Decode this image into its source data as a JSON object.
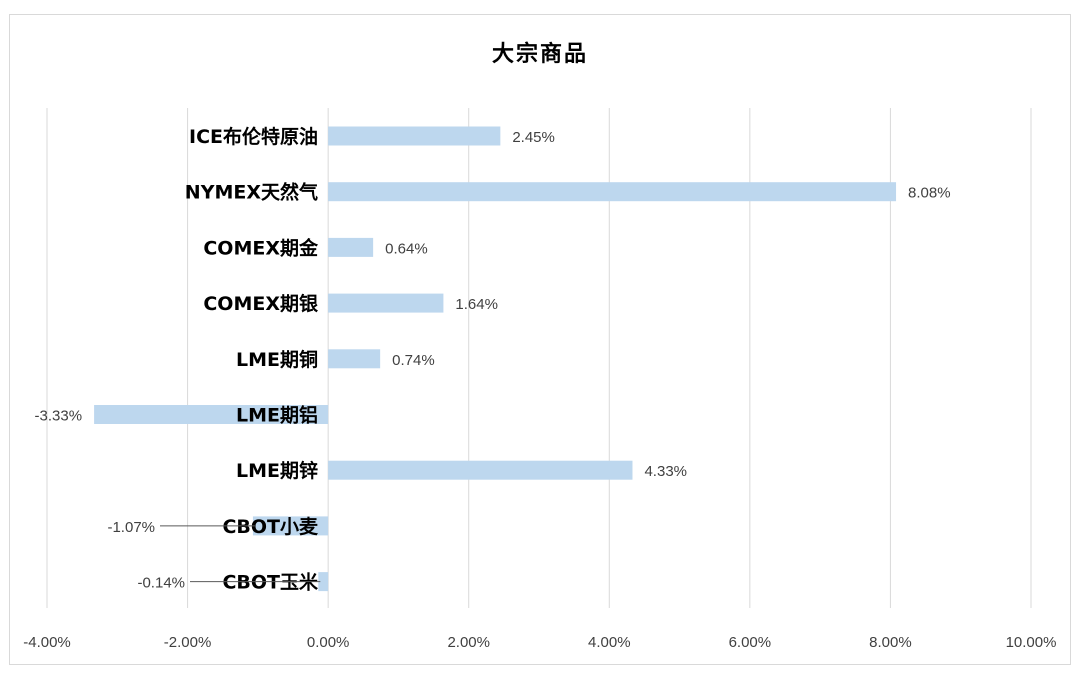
{
  "chart_data": {
    "type": "bar",
    "orientation": "horizontal",
    "title": "大宗商品",
    "categories": [
      "ICE布伦特原油",
      "NYMEX天然气",
      "COMEX期金",
      "COMEX期银",
      "LME期铜",
      "LME期铝",
      "LME期锌",
      "CBOT小麦",
      "CBOT玉米"
    ],
    "values": [
      2.45,
      8.08,
      0.64,
      1.64,
      0.74,
      -3.33,
      4.33,
      -1.07,
      -0.14
    ],
    "value_labels": [
      "2.45%",
      "8.08%",
      "0.64%",
      "1.64%",
      "0.74%",
      "-3.33%",
      "4.33%",
      "-1.07%",
      "-0.14%"
    ],
    "xlim": [
      -4,
      10
    ],
    "x_ticks": [
      -4,
      -2,
      0,
      2,
      4,
      6,
      8,
      10
    ],
    "x_tick_labels": [
      "-4.00%",
      "-2.00%",
      "0.00%",
      "2.00%",
      "4.00%",
      "6.00%",
      "8.00%",
      "10.00%"
    ],
    "grid": "vertical",
    "legend": "none",
    "bar_color": "#bdd7ee",
    "grid_color": "#d9d9d9"
  }
}
